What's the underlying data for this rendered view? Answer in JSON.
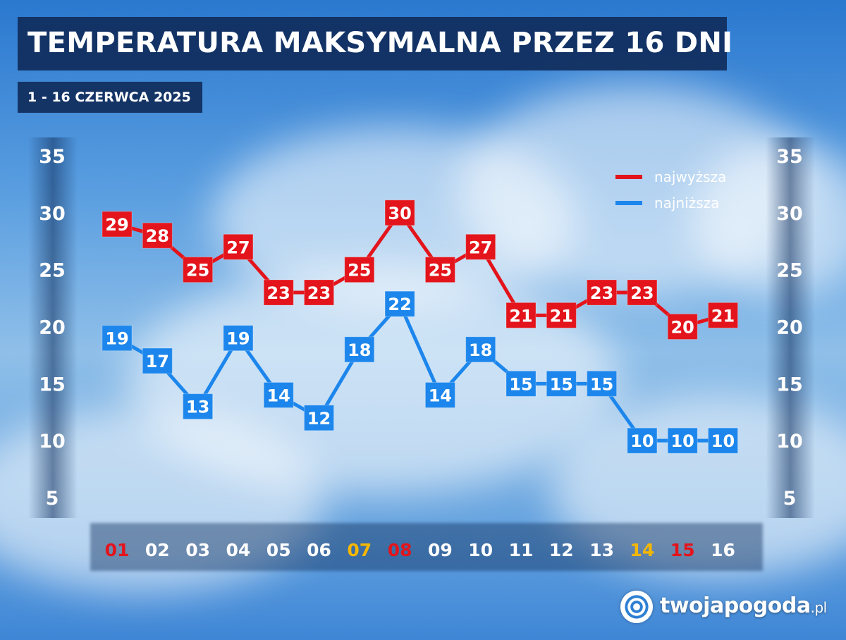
{
  "header": {
    "title": "TEMPERATURA MAKSYMALNA PRZEZ 16 DNI",
    "subtitle": "1 - 16 CZERWCA 2025"
  },
  "brand": {
    "name": "twojapogoda",
    "suffix": ".pl"
  },
  "chart_data": {
    "type": "line",
    "x": [
      "01",
      "02",
      "03",
      "04",
      "05",
      "06",
      "07",
      "08",
      "09",
      "10",
      "11",
      "12",
      "13",
      "14",
      "15",
      "16"
    ],
    "x_label_colors": [
      "#e3141b",
      "#ffffff",
      "#ffffff",
      "#ffffff",
      "#ffffff",
      "#ffffff",
      "#f5b700",
      "#e3141b",
      "#ffffff",
      "#ffffff",
      "#ffffff",
      "#ffffff",
      "#ffffff",
      "#f5b700",
      "#e3141b",
      "#ffffff"
    ],
    "yticks": [
      35,
      30,
      25,
      20,
      15,
      10,
      5
    ],
    "ylim": [
      5,
      35
    ],
    "legend_position": "top-right",
    "series": [
      {
        "name": "najwyższa",
        "color": "#e3141b",
        "values": [
          29,
          28,
          25,
          27,
          23,
          23,
          25,
          30,
          25,
          27,
          21,
          21,
          23,
          23,
          20,
          21
        ]
      },
      {
        "name": "najniższa",
        "color": "#1c86ec",
        "values": [
          19,
          17,
          13,
          19,
          14,
          12,
          18,
          22,
          14,
          18,
          15,
          15,
          15,
          10,
          10,
          10
        ]
      }
    ]
  }
}
